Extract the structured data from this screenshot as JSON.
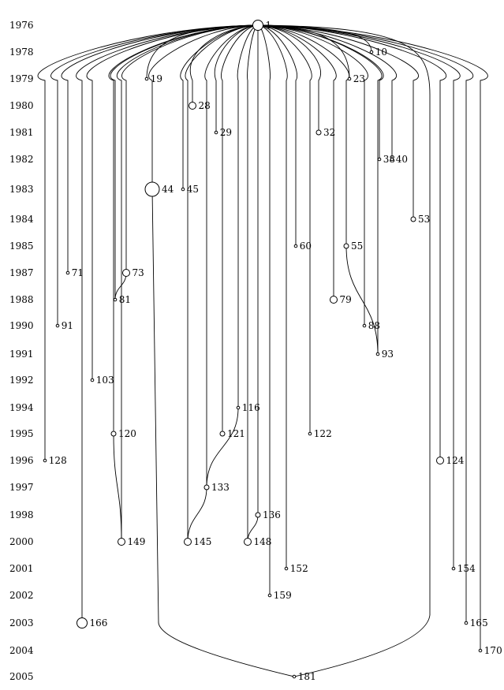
{
  "years": [
    "1976",
    "1978",
    "1979",
    "1980",
    "1981",
    "1982",
    "1983",
    "1984",
    "1985",
    "1987",
    "1988",
    "1990",
    "1991",
    "1992",
    "1994",
    "1995",
    "1996",
    "1997",
    "1998",
    "2000",
    "2001",
    "2002",
    "2003",
    "2004",
    "2005"
  ],
  "nodes": [
    {
      "id": "1",
      "label": "1",
      "year": "1976",
      "size": "large"
    },
    {
      "id": "10",
      "label": "10",
      "year": "1978",
      "size": "dot"
    },
    {
      "id": "19",
      "label": "19",
      "year": "1979",
      "size": "dot"
    },
    {
      "id": "23",
      "label": "23",
      "year": "1979",
      "size": "dot"
    },
    {
      "id": "28",
      "label": "28",
      "year": "1980",
      "size": "medium"
    },
    {
      "id": "29",
      "label": "29",
      "year": "1981",
      "size": "dot"
    },
    {
      "id": "32",
      "label": "32",
      "year": "1981",
      "size": "small"
    },
    {
      "id": "38",
      "label": "38",
      "year": "1982",
      "size": "dot"
    },
    {
      "id": "40",
      "label": "40",
      "year": "1982",
      "size": "dot"
    },
    {
      "id": "44",
      "label": "44",
      "year": "1983",
      "size": "xlarge"
    },
    {
      "id": "45",
      "label": "45",
      "year": "1983",
      "size": "dot"
    },
    {
      "id": "53",
      "label": "53",
      "year": "1984",
      "size": "small"
    },
    {
      "id": "60",
      "label": "60",
      "year": "1985",
      "size": "dot"
    },
    {
      "id": "55",
      "label": "55",
      "year": "1985",
      "size": "small"
    },
    {
      "id": "71",
      "label": "71",
      "year": "1987",
      "size": "dot"
    },
    {
      "id": "73",
      "label": "73",
      "year": "1987",
      "size": "medium"
    },
    {
      "id": "81",
      "label": "81",
      "year": "1988",
      "size": "dot"
    },
    {
      "id": "79",
      "label": "79",
      "year": "1988",
      "size": "medium"
    },
    {
      "id": "91",
      "label": "91",
      "year": "1990",
      "size": "dot"
    },
    {
      "id": "88",
      "label": "88",
      "year": "1990",
      "size": "dot"
    },
    {
      "id": "93",
      "label": "93",
      "year": "1991",
      "size": "dot"
    },
    {
      "id": "103",
      "label": "103",
      "year": "1992",
      "size": "dot"
    },
    {
      "id": "116",
      "label": "116",
      "year": "1994",
      "size": "dot"
    },
    {
      "id": "120",
      "label": "120",
      "year": "1995",
      "size": "small"
    },
    {
      "id": "121",
      "label": "121",
      "year": "1995",
      "size": "small"
    },
    {
      "id": "122",
      "label": "122",
      "year": "1995",
      "size": "dot"
    },
    {
      "id": "128",
      "label": "128",
      "year": "1996",
      "size": "dot"
    },
    {
      "id": "124",
      "label": "124",
      "year": "1996",
      "size": "medium"
    },
    {
      "id": "133",
      "label": "133",
      "year": "1997",
      "size": "small"
    },
    {
      "id": "136",
      "label": "136",
      "year": "1998",
      "size": "small"
    },
    {
      "id": "149",
      "label": "149",
      "year": "2000",
      "size": "medium"
    },
    {
      "id": "145",
      "label": "145",
      "year": "2000",
      "size": "medium"
    },
    {
      "id": "148",
      "label": "148",
      "year": "2000",
      "size": "medium"
    },
    {
      "id": "152",
      "label": "152",
      "year": "2001",
      "size": "dot"
    },
    {
      "id": "154",
      "label": "154",
      "year": "2001",
      "size": "dot"
    },
    {
      "id": "159",
      "label": "159",
      "year": "2002",
      "size": "dot"
    },
    {
      "id": "166",
      "label": "166",
      "year": "2003",
      "size": "large"
    },
    {
      "id": "165",
      "label": "165",
      "year": "2003",
      "size": "dot"
    },
    {
      "id": "170",
      "label": "170",
      "year": "2004",
      "size": "dot"
    },
    {
      "id": "181",
      "label": "181",
      "year": "2005",
      "size": "dot"
    }
  ],
  "edges": [
    [
      "1",
      "10"
    ],
    [
      "1",
      "19"
    ],
    [
      "1",
      "23"
    ],
    [
      "1",
      "28"
    ],
    [
      "1",
      "29"
    ],
    [
      "1",
      "32"
    ],
    [
      "1",
      "38"
    ],
    [
      "1",
      "40"
    ],
    [
      "1",
      "44"
    ],
    [
      "1",
      "45"
    ],
    [
      "1",
      "53"
    ],
    [
      "1",
      "60"
    ],
    [
      "1",
      "55"
    ],
    [
      "1",
      "71"
    ],
    [
      "1",
      "73"
    ],
    [
      "1",
      "81"
    ],
    [
      "1",
      "79"
    ],
    [
      "1",
      "91"
    ],
    [
      "1",
      "88"
    ],
    [
      "1",
      "93"
    ],
    [
      "1",
      "103"
    ],
    [
      "1",
      "116"
    ],
    [
      "1",
      "120"
    ],
    [
      "1",
      "121"
    ],
    [
      "1",
      "122"
    ],
    [
      "1",
      "128"
    ],
    [
      "1",
      "124"
    ],
    [
      "1",
      "133"
    ],
    [
      "1",
      "136"
    ],
    [
      "1",
      "149"
    ],
    [
      "1",
      "145"
    ],
    [
      "1",
      "148"
    ],
    [
      "1",
      "152"
    ],
    [
      "1",
      "154"
    ],
    [
      "1",
      "159"
    ],
    [
      "1",
      "166"
    ],
    [
      "1",
      "165"
    ],
    [
      "1",
      "170"
    ],
    [
      "73",
      "81"
    ],
    [
      "55",
      "93"
    ],
    [
      "120",
      "149"
    ],
    [
      "116",
      "133"
    ],
    [
      "133",
      "145"
    ],
    [
      "136",
      "148"
    ],
    [
      "44",
      "181"
    ]
  ]
}
